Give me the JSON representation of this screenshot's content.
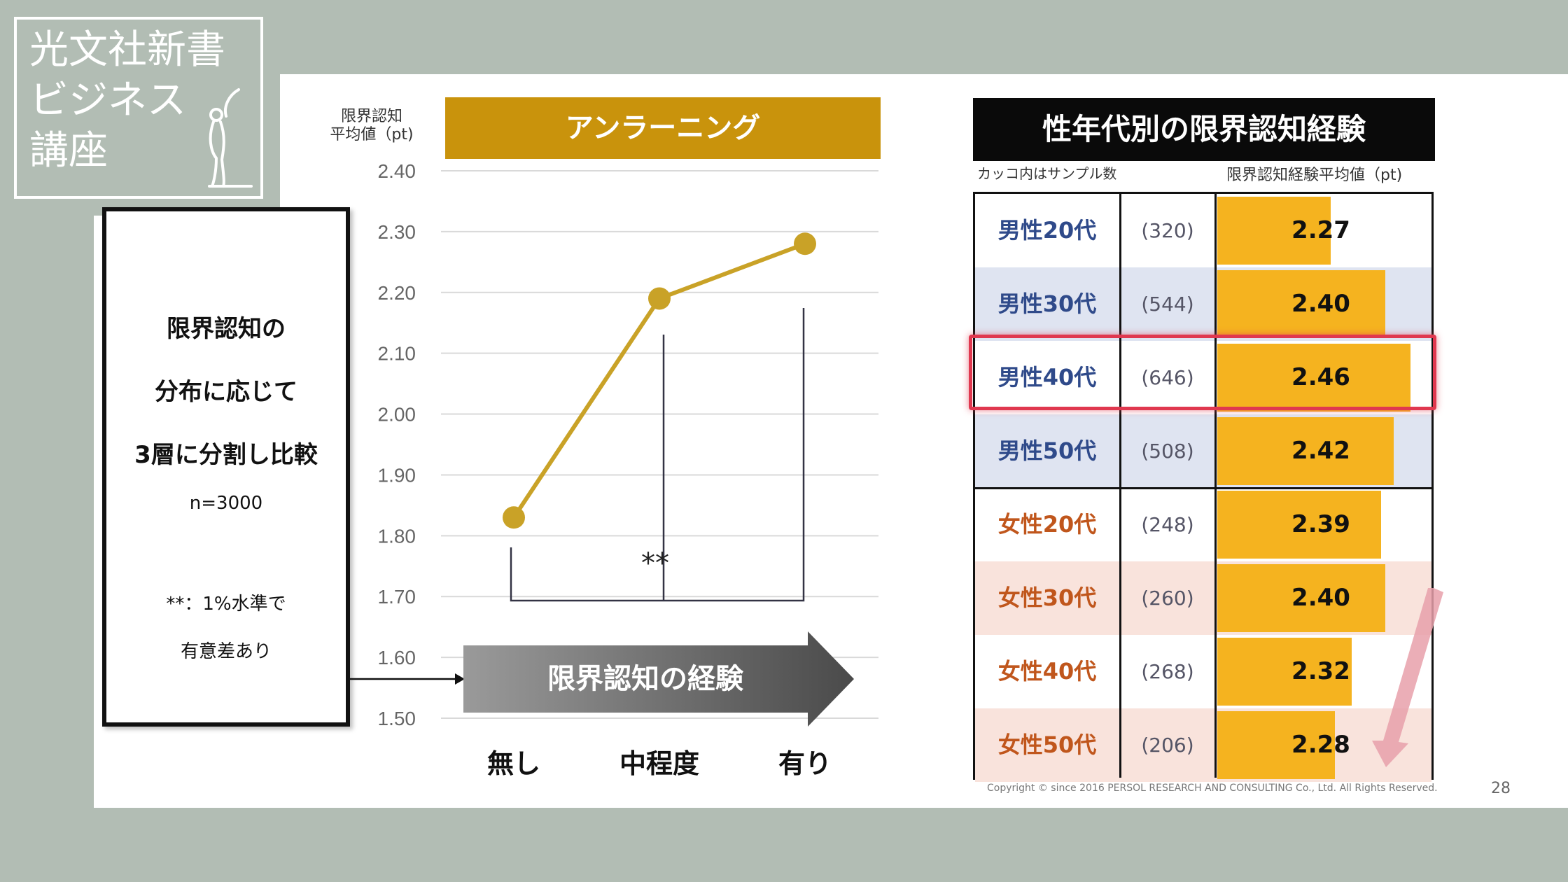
{
  "logo": {
    "line1": "光文社新書",
    "line2": "ビジネス",
    "line3": "講座"
  },
  "left_box": {
    "line1": "限界認知の",
    "line2": "分布に応じて",
    "line3": "3層に分割し比較",
    "n": "n=3000",
    "note1": "**：1%水準で",
    "note2": "有意差あり"
  },
  "chart_data": [
    {
      "type": "line",
      "title": "アンラーニング",
      "ylabel": "限界認知\n平均値（pt)",
      "xlabel": "限界認知の経験",
      "categories": [
        "無し",
        "中程度",
        "有り"
      ],
      "values": [
        1.83,
        2.19,
        2.28
      ],
      "ylim": [
        1.5,
        2.4
      ],
      "yticks": [
        "2.40",
        "2.30",
        "2.20",
        "2.10",
        "2.00",
        "1.90",
        "1.80",
        "1.70",
        "1.60",
        "1.50"
      ],
      "annotation": "**",
      "color": "#c9a227",
      "grid": true
    },
    {
      "type": "table",
      "title": "性年代別の限界認知経験",
      "header_left": "カッコ内はサンプル数",
      "header_right": "限界認知経験平均値（pt)",
      "rows": [
        {
          "label": "男性20代",
          "n": "(320)",
          "value": 2.27,
          "value_text": "2.27"
        },
        {
          "label": "男性30代",
          "n": "(544)",
          "value": 2.4,
          "value_text": "2.40"
        },
        {
          "label": "男性40代",
          "n": "(646)",
          "value": 2.46,
          "value_text": "2.46"
        },
        {
          "label": "男性50代",
          "n": "(508)",
          "value": 2.42,
          "value_text": "2.42"
        },
        {
          "label": "女性20代",
          "n": "(248)",
          "value": 2.39,
          "value_text": "2.39"
        },
        {
          "label": "女性30代",
          "n": "(260)",
          "value": 2.4,
          "value_text": "2.40"
        },
        {
          "label": "女性40代",
          "n": "(268)",
          "value": 2.32,
          "value_text": "2.32"
        },
        {
          "label": "女性50代",
          "n": "(206)",
          "value": 2.28,
          "value_text": "2.28"
        }
      ],
      "highlighted_row": "男性40代"
    }
  ],
  "colors": {
    "male_label": "#2f4a8a",
    "female_label": "#c0561c",
    "bar": "#f5b31f",
    "line": "#c9a227",
    "title_bar": "#c9930c",
    "highlight": "#e0384f"
  },
  "footer": {
    "copyright": "Copyright © since 2016  PERSOL  RESEARCH AND CONSULTING Co., Ltd. All Rights Reserved.",
    "page": "28"
  }
}
